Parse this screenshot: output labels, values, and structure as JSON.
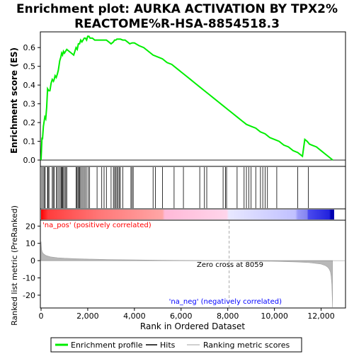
{
  "chart_data": {
    "type": "line",
    "title_line1": "Enrichment plot: AURKA ACTIVATION BY TPX2%",
    "title_line2": "REACTOME%R-HSA-8854518.3",
    "top_panel": {
      "ylabel": "Enrichment score (ES)",
      "ylim": [
        -0.03,
        0.68
      ],
      "yticks": [
        "0.0",
        "0.1",
        "0.2",
        "0.3",
        "0.4",
        "0.5",
        "0.6"
      ],
      "ytick_values": [
        0.0,
        0.1,
        0.2,
        0.3,
        0.4,
        0.5,
        0.6
      ],
      "series": [
        {
          "name": "Enrichment profile",
          "color": "#00ee00",
          "x": [
            0,
            40,
            60,
            100,
            160,
            200,
            240,
            280,
            330,
            380,
            430,
            480,
            530,
            560,
            600,
            650,
            700,
            740,
            800,
            850,
            880,
            920,
            960,
            1000,
            1050,
            1100,
            1200,
            1300,
            1400,
            1500,
            1550,
            1600,
            1650,
            1700,
            1750,
            1800,
            1850,
            1900,
            1950,
            2000,
            2050,
            2100,
            2200,
            2300,
            2400,
            2500,
            2600,
            2700,
            2800,
            2900,
            3000,
            3100,
            3150,
            3200,
            3250,
            3300,
            3350,
            3400,
            3500,
            3600,
            3700,
            3800,
            3900,
            4000,
            4200,
            4400,
            4600,
            4800,
            5000,
            5200,
            5400,
            5600,
            5800,
            6000,
            6200,
            6400,
            6600,
            6800,
            7000,
            7200,
            7400,
            7600,
            7800,
            8000,
            8200,
            8400,
            8600,
            8800,
            9000,
            9200,
            9400,
            9600,
            9800,
            10000,
            10200,
            10400,
            10600,
            10800,
            11000,
            11200,
            11300,
            11400,
            11500,
            11600,
            11800,
            12000,
            12200,
            12400,
            12500
          ],
          "y": [
            0.0,
            0.12,
            0.11,
            0.18,
            0.23,
            0.22,
            0.28,
            0.38,
            0.37,
            0.37,
            0.41,
            0.43,
            0.42,
            0.43,
            0.45,
            0.44,
            0.46,
            0.48,
            0.53,
            0.55,
            0.57,
            0.56,
            0.58,
            0.57,
            0.58,
            0.59,
            0.58,
            0.57,
            0.56,
            0.6,
            0.59,
            0.62,
            0.62,
            0.64,
            0.63,
            0.64,
            0.65,
            0.65,
            0.64,
            0.66,
            0.66,
            0.65,
            0.65,
            0.64,
            0.64,
            0.64,
            0.64,
            0.64,
            0.64,
            0.63,
            0.62,
            0.63,
            0.64,
            0.64,
            0.645,
            0.645,
            0.645,
            0.645,
            0.64,
            0.64,
            0.63,
            0.62,
            0.625,
            0.625,
            0.61,
            0.6,
            0.58,
            0.56,
            0.55,
            0.54,
            0.52,
            0.51,
            0.49,
            0.47,
            0.45,
            0.43,
            0.41,
            0.39,
            0.37,
            0.35,
            0.33,
            0.31,
            0.29,
            0.27,
            0.25,
            0.23,
            0.21,
            0.19,
            0.18,
            0.17,
            0.15,
            0.14,
            0.12,
            0.11,
            0.1,
            0.08,
            0.07,
            0.05,
            0.04,
            0.02,
            0.11,
            0.1,
            0.085,
            0.08,
            0.07,
            0.05,
            0.03,
            0.01,
            0.0
          ]
        }
      ]
    },
    "hits": [
      30,
      90,
      140,
      180,
      280,
      300,
      340,
      480,
      520,
      560,
      650,
      700,
      760,
      820,
      870,
      900,
      920,
      960,
      1020,
      1060,
      1100,
      1500,
      1540,
      1580,
      1620,
      1660,
      1700,
      1760,
      1820,
      1880,
      1940,
      2020,
      2080,
      2400,
      2600,
      2700,
      2800,
      3000,
      3100,
      3150,
      3200,
      3250,
      3300,
      3350,
      3400,
      3500,
      3850,
      3900,
      3950,
      4800,
      4900,
      5200,
      5700,
      6100,
      6800,
      7000,
      7100,
      7800,
      7900,
      7950,
      8400,
      8700,
      8800,
      8900,
      9000,
      9200,
      9400,
      9500,
      9600,
      9700,
      10100,
      11000,
      11450
    ],
    "bottom_panel": {
      "ylabel": "Ranked list metric (PreRanked)",
      "ylim": [
        -27,
        23
      ],
      "yticks": [
        "20",
        "10",
        "0",
        "-10",
        "-20"
      ],
      "ytick_values": [
        20,
        10,
        0,
        -10,
        -20
      ],
      "x": [
        0,
        20,
        50,
        100,
        200,
        400,
        700,
        1000,
        1500,
        2000,
        3000,
        4000,
        5000,
        6000,
        7000,
        8059,
        9000,
        10000,
        11000,
        11500,
        12000,
        12200,
        12300,
        12350,
        12400,
        12430,
        12460,
        12490
      ],
      "y": [
        11,
        6.5,
        5,
        4,
        3,
        2.2,
        1.7,
        1.4,
        1.1,
        0.9,
        0.6,
        0.4,
        0.25,
        0.12,
        0.05,
        0,
        -0.2,
        -0.4,
        -0.8,
        -1.2,
        -2,
        -3,
        -4,
        -5,
        -6.5,
        -9,
        -14,
        -27
      ]
    },
    "xlabel": "Rank in Ordered Dataset",
    "xlim": [
      0,
      12560
    ],
    "xticks": [
      "0",
      "2,000",
      "4,000",
      "6,000",
      "8,000",
      "10,000",
      "12,000"
    ],
    "xtick_values": [
      0,
      2000,
      4000,
      6000,
      8000,
      10000,
      12000
    ],
    "zero_cross_label": "Zero cross at 8059",
    "zero_cross_value": 8059,
    "pos_label": "'na_pos' (positively correlated)",
    "neg_label": "'na_neg' (negatively correlated)",
    "pos_color": "#ff0000",
    "neg_color": "#0000ff",
    "heatmap_stops": [
      {
        "x": 0,
        "color": "#ff0000"
      },
      {
        "x": 300,
        "color": "#ff3d3d"
      },
      {
        "x": 2500,
        "color": "#ff7777"
      },
      {
        "x": 5200,
        "color": "#ffa6a6"
      },
      {
        "x": 5300,
        "color": "#ffb9d8"
      },
      {
        "x": 7950,
        "color": "#ffd5ea"
      },
      {
        "x": 8050,
        "color": "#e8e8ff"
      },
      {
        "x": 10900,
        "color": "#c0c0ff"
      },
      {
        "x": 11000,
        "color": "#9a9af7"
      },
      {
        "x": 11400,
        "color": "#8484f0"
      },
      {
        "x": 11450,
        "color": "#4a4aee"
      },
      {
        "x": 12350,
        "color": "#2222dd"
      },
      {
        "x": 12420,
        "color": "#0000b0"
      },
      {
        "x": 12560,
        "color": "#0000b0"
      }
    ],
    "legend": [
      {
        "label": "Enrichment profile",
        "color": "#00ee00"
      },
      {
        "label": "Hits",
        "color": "#000000"
      },
      {
        "label": "Ranking metric scores",
        "color": "#c0c0c0"
      }
    ]
  }
}
